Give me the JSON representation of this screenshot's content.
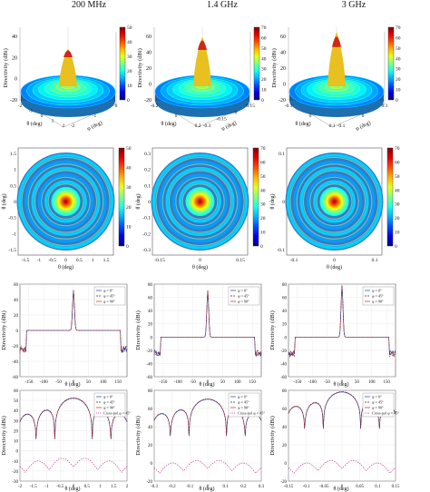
{
  "columns": [
    "200 MHz",
    "1.4 GHz",
    "3 GHz"
  ],
  "row_labels": {
    "surface": {
      "z": "Directivity (dBi)",
      "x": "θ (deg)",
      "y": "φ (deg)"
    },
    "map": {
      "x": "θ (deg)",
      "y": "θ (deg)"
    },
    "cut": {
      "y": "Directivity (dBi)",
      "x": "θ (deg)"
    },
    "copol": {
      "y": "Directivity (dBi)",
      "x": "θ (deg)"
    }
  },
  "legend_cut": [
    "φ = 0°",
    "φ = 45°",
    "φ = 90°"
  ],
  "legend_copol": [
    "φ = 0°",
    "φ = 45°",
    "φ = 90°",
    "Cross-pol φ = 45°"
  ],
  "colors": {
    "phi0": "#1f3fbf",
    "phi45": "#333333",
    "phi90": "#d02020",
    "xpol": "#c0208a"
  },
  "chart_data": [
    {
      "type": "surface",
      "panel": "surface-200",
      "title": "200 MHz",
      "peak": 50,
      "zticks": [
        -20,
        0,
        20,
        40
      ],
      "xticks": [
        "-2",
        "-1",
        "0",
        "1",
        "2"
      ],
      "yticks": [
        "-2",
        "-1",
        "0"
      ],
      "colorbar": [
        0,
        10,
        20,
        30,
        40,
        50
      ]
    },
    {
      "type": "surface",
      "panel": "surface-1400",
      "title": "1.4 GHz",
      "peak": 70,
      "zticks": [
        -20,
        0,
        20,
        40,
        60
      ],
      "xticks": [
        "-0.2",
        "0",
        "0.2"
      ],
      "yticks": [
        "-0.3",
        "-0.15",
        "0",
        "0.15"
      ],
      "colorbar": [
        0,
        10,
        20,
        30,
        40,
        50,
        60,
        70
      ]
    },
    {
      "type": "surface",
      "panel": "surface-3000",
      "title": "3 GHz",
      "peak": 78,
      "zticks": [
        -20,
        0,
        20,
        40,
        60
      ],
      "xticks": [
        "-0.1",
        "0",
        "0.1"
      ],
      "yticks": [
        "-0.1",
        "0",
        "0.1"
      ],
      "colorbar": [
        0,
        10,
        20,
        30,
        40,
        50,
        60,
        70
      ]
    },
    {
      "type": "heatmap",
      "panel": "map-200",
      "xticks": [
        "-1.5",
        "-1",
        "-0.5",
        "0",
        "0.5",
        "1",
        "1.5"
      ],
      "yticks": [
        "-1.5",
        "-1",
        "-0.5",
        "0",
        "0.5",
        "1",
        "1.5"
      ],
      "colorbar": [
        0,
        10,
        20,
        30,
        40,
        50
      ],
      "xlim": [
        -1.7,
        1.7
      ]
    },
    {
      "type": "heatmap",
      "panel": "map-1400",
      "xticks": [
        "-0.15",
        "0",
        "0.15"
      ],
      "yticks": [
        "-0.3",
        "-0.2",
        "-0.1",
        "0",
        "0.1",
        "0.2",
        "0.3"
      ],
      "colorbar": [
        0,
        10,
        20,
        30,
        40,
        50,
        60,
        70
      ],
      "xlim": [
        -0.32,
        0.32
      ]
    },
    {
      "type": "heatmap",
      "panel": "map-3000",
      "xticks": [
        "-0.1",
        "0",
        "0.1"
      ],
      "yticks": [
        "-0.1",
        "0",
        "0.1"
      ],
      "colorbar": [
        0,
        10,
        20,
        30,
        40,
        50,
        60,
        70
      ],
      "xlim": [
        -0.15,
        0.15
      ]
    },
    {
      "type": "line",
      "panel": "cut-200",
      "xlim": [
        -180,
        180
      ],
      "ylim": [
        -60,
        60
      ],
      "xticks": [
        -150,
        -100,
        -50,
        0,
        50,
        100,
        150
      ],
      "yticks": [
        -60,
        -40,
        -20,
        0,
        20,
        40,
        60
      ],
      "peak": 52
    },
    {
      "type": "line",
      "panel": "cut-1400",
      "xlim": [
        -180,
        180
      ],
      "ylim": [
        -60,
        80
      ],
      "xticks": [
        -150,
        -100,
        -50,
        0,
        50,
        100,
        150
      ],
      "yticks": [
        -60,
        -40,
        -20,
        0,
        20,
        40,
        60,
        80
      ],
      "peak": 70
    },
    {
      "type": "line",
      "panel": "cut-3000",
      "xlim": [
        -180,
        180
      ],
      "ylim": [
        -60,
        80
      ],
      "xticks": [
        -150,
        -100,
        -50,
        0,
        50,
        100,
        150
      ],
      "yticks": [
        -60,
        -40,
        -20,
        0,
        20,
        40,
        60,
        80
      ],
      "peak": 78
    },
    {
      "type": "line",
      "panel": "copol-200",
      "xlim": [
        -2,
        2
      ],
      "ylim": [
        -30,
        60
      ],
      "xticks": [
        -2,
        -1.5,
        -1,
        -0.5,
        0,
        0.5,
        1,
        1.5,
        2
      ],
      "yticks": [
        -30,
        -20,
        -10,
        0,
        10,
        20,
        30,
        40,
        50,
        60
      ],
      "peak": 52
    },
    {
      "type": "line",
      "panel": "copol-1400",
      "xlim": [
        -0.3,
        0.3
      ],
      "ylim": [
        -20,
        80
      ],
      "xticks": [
        -0.3,
        -0.2,
        -0.1,
        0,
        0.1,
        0.2,
        0.3
      ],
      "yticks": [
        -20,
        0,
        20,
        40,
        60,
        80
      ],
      "peak": 70
    },
    {
      "type": "line",
      "panel": "copol-3000",
      "xlim": [
        -0.15,
        0.15
      ],
      "ylim": [
        -20,
        80
      ],
      "xticks": [
        -0.15,
        -0.1,
        -0.05,
        0,
        0.05,
        0.1,
        0.15
      ],
      "yticks": [
        -20,
        0,
        20,
        40,
        60,
        80
      ],
      "peak": 78
    }
  ]
}
